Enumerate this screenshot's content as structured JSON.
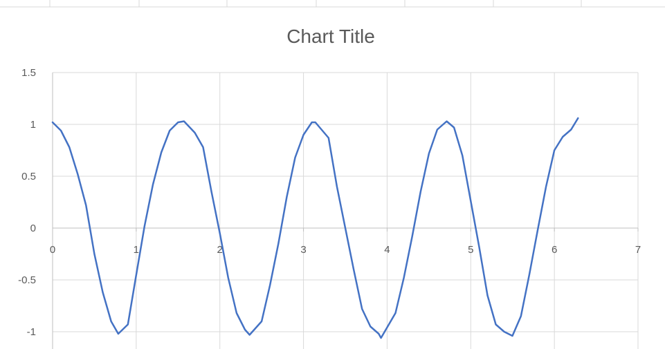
{
  "chart_data": {
    "type": "line",
    "title": "Chart Title",
    "xlabel": "",
    "ylabel": "",
    "xlim": [
      0,
      7
    ],
    "ylim": [
      -1.1,
      1.5
    ],
    "x_ticks": [
      "0",
      "1",
      "2",
      "3",
      "4",
      "5",
      "6",
      "7"
    ],
    "y_ticks": [
      "1.5",
      "1",
      "0.5",
      "0",
      "-0.5",
      "-1"
    ],
    "grid": true,
    "legend": "none",
    "series": [
      {
        "color": "#4472c4",
        "x": [
          0.0,
          0.1,
          0.2,
          0.3,
          0.4,
          0.5,
          0.6,
          0.7,
          0.785,
          0.9,
          1.0,
          1.1,
          1.2,
          1.3,
          1.4,
          1.5,
          1.571,
          1.7,
          1.8,
          1.9,
          2.0,
          2.1,
          2.2,
          2.3,
          2.356,
          2.5,
          2.6,
          2.7,
          2.8,
          2.9,
          3.0,
          3.1,
          3.142,
          3.3,
          3.4,
          3.5,
          3.6,
          3.7,
          3.8,
          3.9,
          3.927,
          4.1,
          4.2,
          4.3,
          4.4,
          4.5,
          4.6,
          4.712,
          4.8,
          4.9,
          5.0,
          5.1,
          5.2,
          5.3,
          5.4,
          5.498,
          5.6,
          5.7,
          5.8,
          5.9,
          6.0,
          6.1,
          6.2,
          6.283
        ],
        "y": [
          1.02,
          0.94,
          0.78,
          0.52,
          0.22,
          -0.25,
          -0.62,
          -0.9,
          -1.02,
          -0.93,
          -0.45,
          0.02,
          0.42,
          0.73,
          0.94,
          1.02,
          1.03,
          0.92,
          0.78,
          0.35,
          -0.05,
          -0.48,
          -0.82,
          -0.98,
          -1.03,
          -0.9,
          -0.55,
          -0.15,
          0.3,
          0.68,
          0.9,
          1.02,
          1.02,
          0.87,
          0.4,
          0.0,
          -0.4,
          -0.78,
          -0.95,
          -1.02,
          -1.06,
          -0.82,
          -0.48,
          -0.08,
          0.35,
          0.72,
          0.95,
          1.03,
          0.97,
          0.7,
          0.26,
          -0.18,
          -0.65,
          -0.93,
          -1.0,
          -1.04,
          -0.85,
          -0.45,
          -0.02,
          0.4,
          0.75,
          0.88,
          0.95,
          1.06
        ]
      }
    ]
  }
}
